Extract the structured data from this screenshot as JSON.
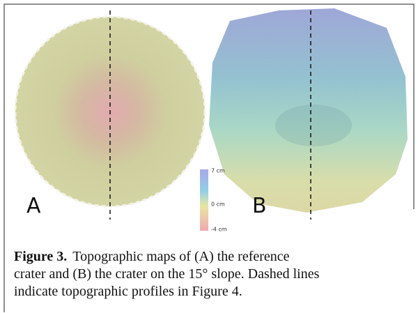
{
  "figure": {
    "panels": [
      "A",
      "B"
    ],
    "colorbar": {
      "labels": [
        "7 cm",
        "0 cm",
        "-4 cm"
      ]
    },
    "caption": {
      "label": "Figure 3.",
      "lines": [
        "Topographic maps of (A) the reference",
        "crater and (B) the crater on the 15° slope. Dashed lines",
        "indicate topographic profiles in Figure 4."
      ]
    }
  }
}
